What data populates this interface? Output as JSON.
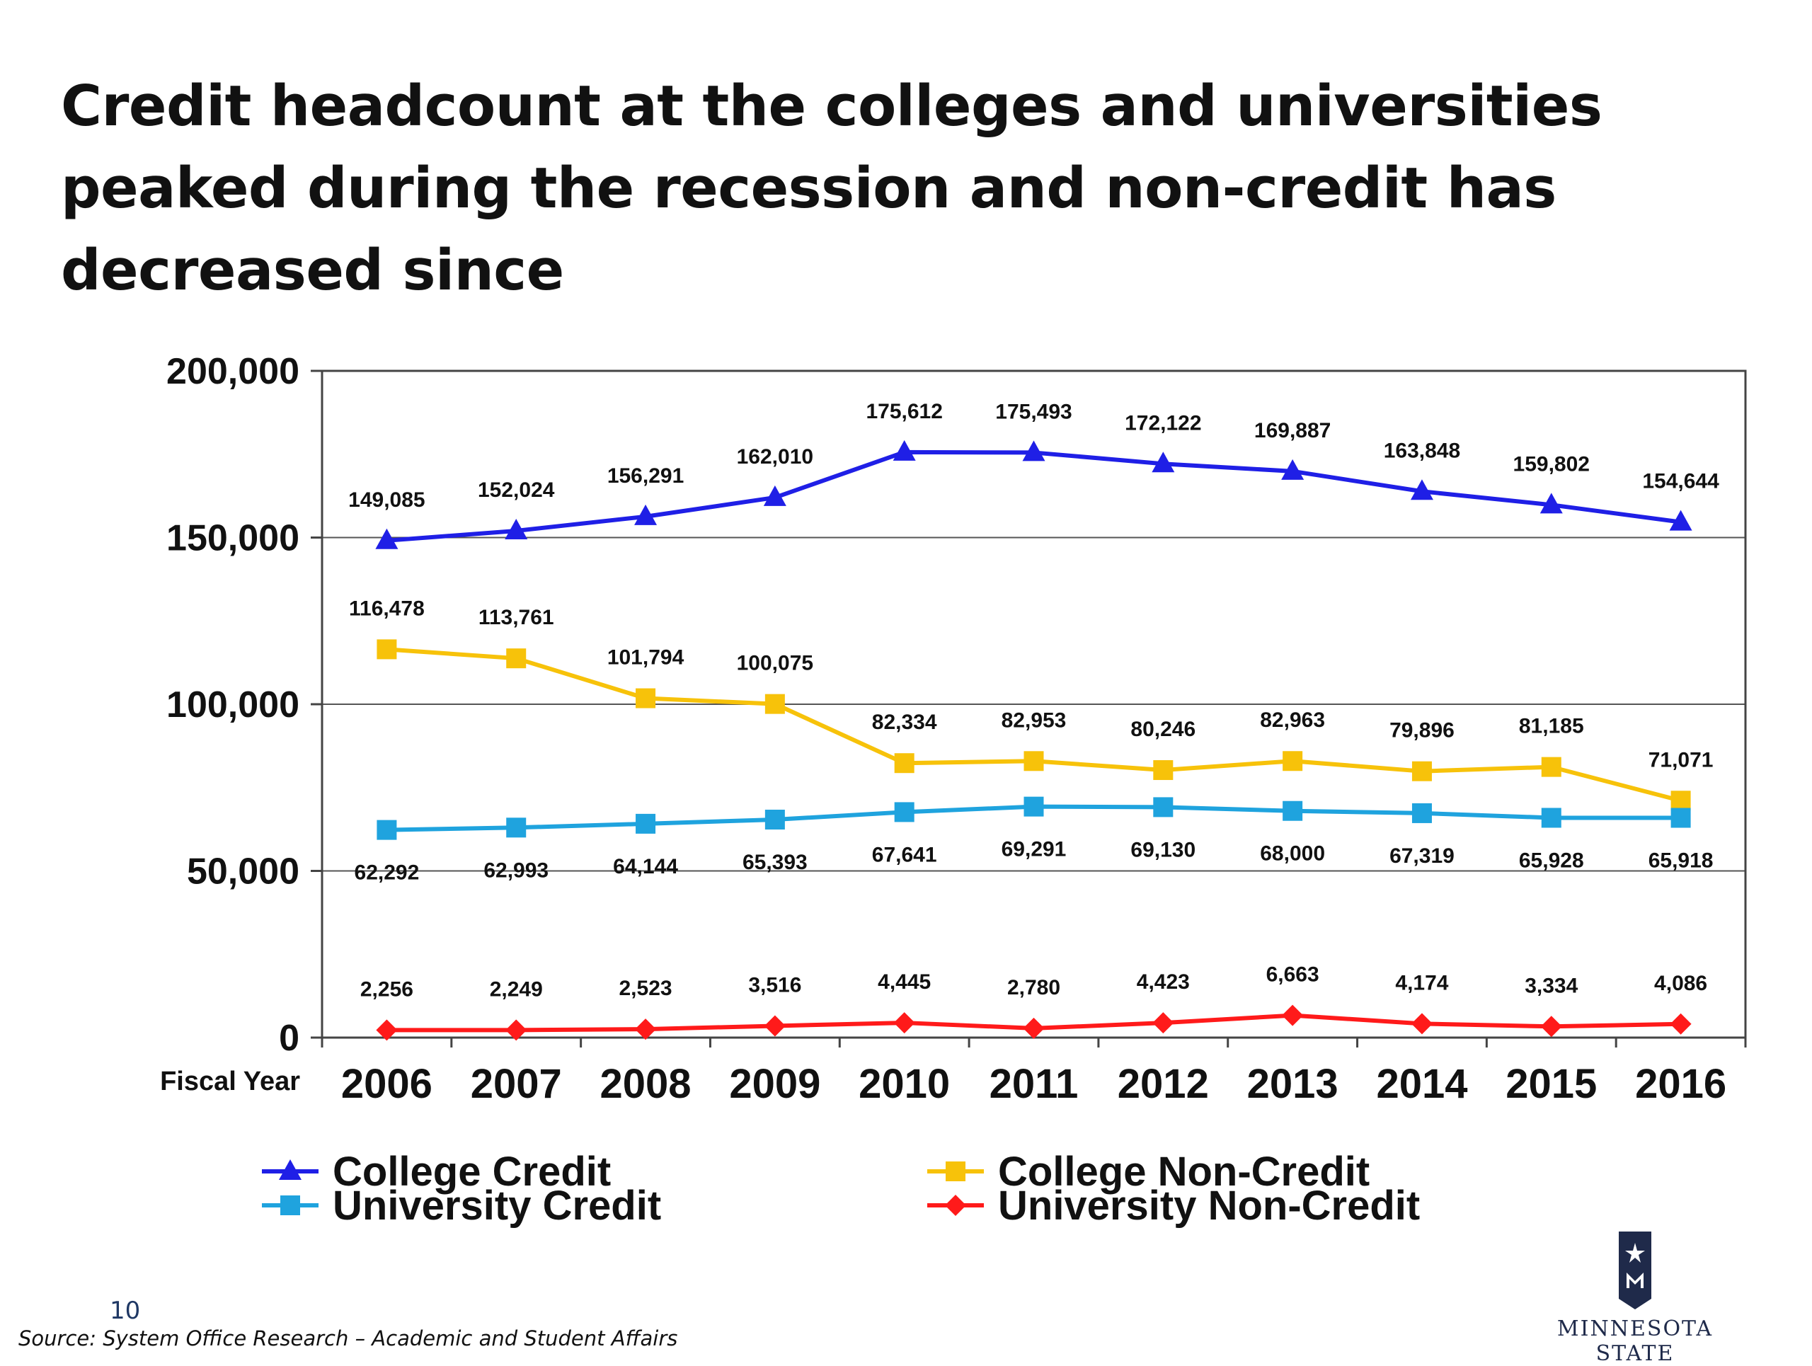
{
  "title": "Credit headcount at the colleges and universities peaked during the recession and non-credit has decreased since",
  "slide_number": "10",
  "source": "Source: System Office Research – Academic and Student Affairs",
  "logo_text": "MINNESOTA STATE",
  "colors": {
    "college_credit": "#1f1fe6",
    "college_noncredit": "#f7c20a",
    "university_credit": "#1fa3de",
    "university_noncredit": "#ff1a1a",
    "brand_navy": "#1f2a4a"
  },
  "chart_data": {
    "type": "line",
    "xlabel": "Fiscal Year",
    "ylabel": "",
    "ylim": [
      0,
      200000
    ],
    "yticks": [
      0,
      50000,
      100000,
      150000,
      200000
    ],
    "ytick_labels": [
      "0",
      "50,000",
      "100,000",
      "150,000",
      "200,000"
    ],
    "grid": true,
    "legend_position": "bottom",
    "categories": [
      "2006",
      "2007",
      "2008",
      "2009",
      "2010",
      "2011",
      "2012",
      "2013",
      "2014",
      "2015",
      "2016"
    ],
    "series": [
      {
        "name": "College Credit",
        "color": "#1f1fe6",
        "marker": "triangle",
        "label_pos": "above",
        "values": [
          149085,
          152024,
          156291,
          162010,
          175612,
          175493,
          172122,
          169887,
          163848,
          159802,
          154644
        ],
        "labels": [
          "149,085",
          "152,024",
          "156,291",
          "162,010",
          "175,612",
          "175,493",
          "172,122",
          "169,887",
          "163,848",
          "159,802",
          "154,644"
        ]
      },
      {
        "name": "College Non-Credit",
        "color": "#f7c20a",
        "marker": "square",
        "label_pos": "above",
        "values": [
          116478,
          113761,
          101794,
          100075,
          82334,
          82953,
          80246,
          82963,
          79896,
          81185,
          71071
        ],
        "labels": [
          "116,478",
          "113,761",
          "101,794",
          "100,075",
          "82,334",
          "82,953",
          "80,246",
          "82,963",
          "79,896",
          "81,185",
          "71,071"
        ]
      },
      {
        "name": "University Credit",
        "color": "#1fa3de",
        "marker": "square",
        "label_pos": "below",
        "values": [
          62292,
          62993,
          64144,
          65393,
          67641,
          69291,
          69130,
          68000,
          67319,
          65928,
          65918
        ],
        "labels": [
          "62,292",
          "62,993",
          "64,144",
          "65,393",
          "67,641",
          "69,291",
          "69,130",
          "68,000",
          "67,319",
          "65,928",
          "65,918"
        ]
      },
      {
        "name": "University Non-Credit",
        "color": "#ff1a1a",
        "marker": "diamond",
        "label_pos": "above",
        "values": [
          2256,
          2249,
          2523,
          3516,
          4445,
          2780,
          4423,
          6663,
          4174,
          3334,
          4086
        ],
        "labels": [
          "2,256",
          "2,249",
          "2,523",
          "3,516",
          "4,445",
          "2,780",
          "4,423",
          "6,663",
          "4,174",
          "3,334",
          "4,086"
        ]
      }
    ]
  }
}
